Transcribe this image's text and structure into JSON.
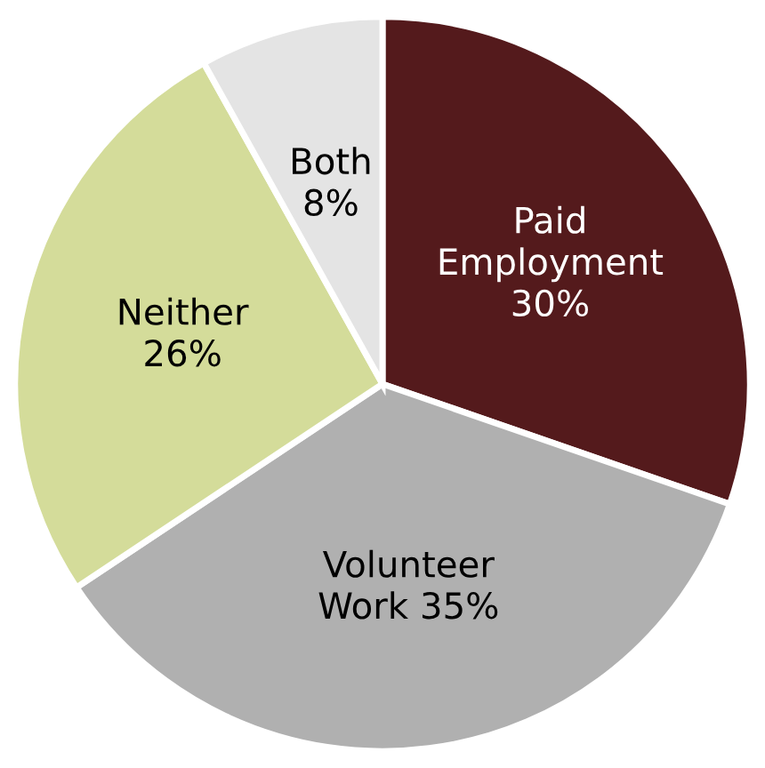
{
  "chart_data": {
    "type": "pie",
    "categories": [
      "Paid Employment",
      "Volunteer Work",
      "Neither",
      "Both"
    ],
    "values": [
      30,
      35,
      26,
      8
    ],
    "value_labels": [
      "30%",
      "35%",
      "26%",
      "8%"
    ],
    "colors": [
      "#541a1c",
      "#b0b0b0",
      "#d4dc9a",
      "#e4e4e4"
    ]
  }
}
